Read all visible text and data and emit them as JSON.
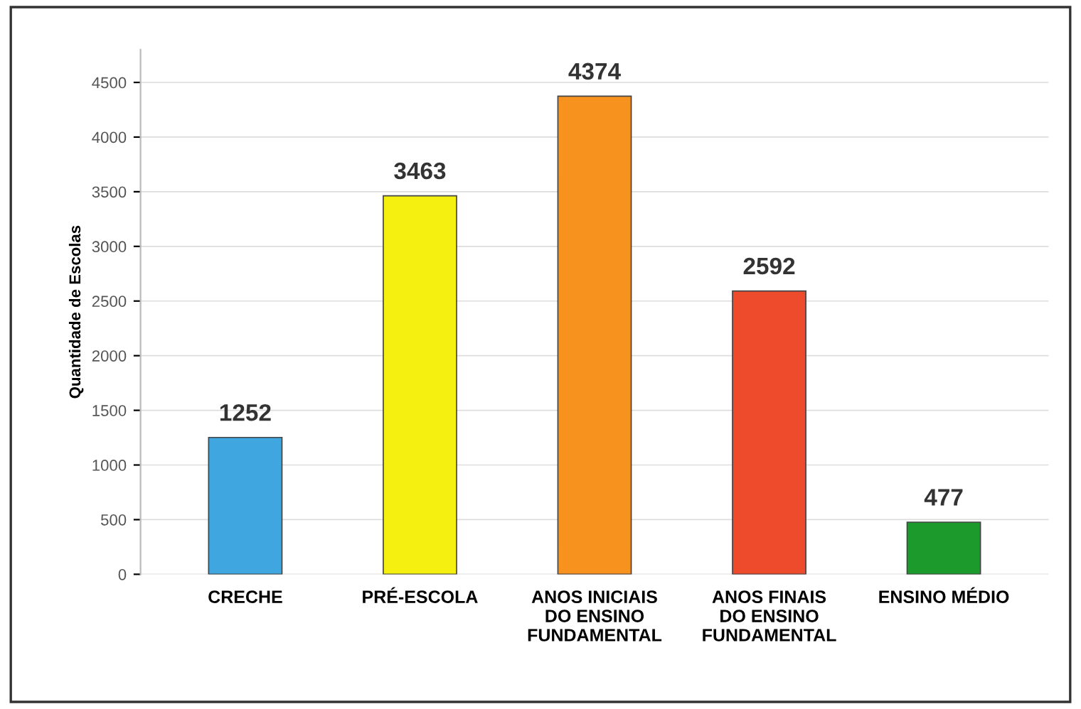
{
  "chart_data": {
    "type": "bar",
    "ylabel": "Quantidade de Escolas",
    "categories": [
      "CRECHE",
      "PRÉ-ESCOLA",
      "ANOS INICIAIS\nDO ENSINO\nFUNDAMENTAL",
      "ANOS FINAIS\nDO ENSINO\nFUNDAMENTAL",
      "ENSINO MÉDIO"
    ],
    "values": [
      1252,
      3463,
      4374,
      2592,
      477
    ],
    "colors": [
      "#3fa6df",
      "#f5f010",
      "#f7921e",
      "#ee4a2c",
      "#1c9a2c"
    ],
    "ylim": [
      0,
      4800
    ],
    "yticks": [
      0,
      500,
      1000,
      1500,
      2000,
      2500,
      3000,
      3500,
      4000,
      4500
    ],
    "grid": "y",
    "data_labels": true
  }
}
